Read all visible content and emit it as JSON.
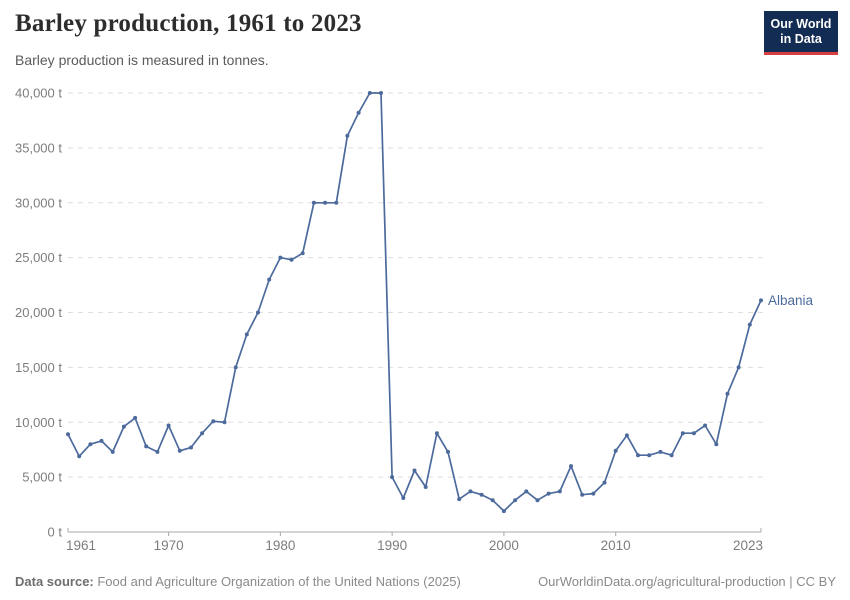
{
  "header": {
    "title": "Barley production, 1961 to 2023",
    "subtitle": "Barley production is measured in tonnes.",
    "logo": {
      "line1": "Our World",
      "line2": "in Data"
    }
  },
  "chart_data": {
    "type": "line",
    "title": "Barley production, 1961 to 2023",
    "ylabel": "tonnes",
    "xlim": [
      1961,
      2023
    ],
    "ylim": [
      0,
      40000
    ],
    "grid": "horizontal-dashed",
    "legend_position": "end-of-line-label",
    "xticks": [
      1961,
      1970,
      1980,
      1990,
      2000,
      2010,
      2023
    ],
    "yticks": [
      0,
      5000,
      10000,
      15000,
      20000,
      25000,
      30000,
      35000,
      40000
    ],
    "ytick_labels": [
      "0 t",
      "5,000 t",
      "10,000 t",
      "15,000 t",
      "20,000 t",
      "25,000 t",
      "30,000 t",
      "35,000 t",
      "40,000 t"
    ],
    "series": [
      {
        "name": "Albania",
        "color": "#4C6A9C",
        "x": [
          1961,
          1962,
          1963,
          1964,
          1965,
          1966,
          1967,
          1968,
          1969,
          1970,
          1971,
          1972,
          1973,
          1974,
          1975,
          1976,
          1977,
          1978,
          1979,
          1980,
          1981,
          1982,
          1983,
          1984,
          1985,
          1986,
          1987,
          1988,
          1989,
          1990,
          1991,
          1992,
          1993,
          1994,
          1995,
          1996,
          1997,
          1998,
          1999,
          2000,
          2001,
          2002,
          2003,
          2004,
          2005,
          2006,
          2007,
          2008,
          2009,
          2010,
          2011,
          2012,
          2013,
          2014,
          2015,
          2016,
          2017,
          2018,
          2019,
          2020,
          2021,
          2022,
          2023
        ],
        "values": [
          8900,
          6900,
          8000,
          8300,
          7300,
          9600,
          10400,
          7800,
          7300,
          9700,
          7400,
          7700,
          9000,
          10100,
          10000,
          15000,
          18000,
          20000,
          23000,
          25000,
          24800,
          25400,
          30000,
          30000,
          30000,
          36100,
          38200,
          40000,
          40000,
          5000,
          3100,
          5600,
          4100,
          9000,
          7300,
          3000,
          3700,
          3400,
          2900,
          1900,
          2900,
          3700,
          2900,
          3500,
          3700,
          6000,
          3400,
          3500,
          4500,
          7400,
          8800,
          7000,
          7000,
          7300,
          7000,
          9000,
          9000,
          9700,
          8000,
          12600,
          15000,
          18900,
          21100
        ]
      }
    ]
  },
  "footer": {
    "source_label": "Data source:",
    "source_text": " Food and Agriculture Organization of the United Nations (2025)",
    "credit": "OurWorldinData.org/agricultural-production | CC BY"
  },
  "colors": {
    "line": "#4C6A9C",
    "grid": "#dedede",
    "axis": "#a8a8a8",
    "tick_label": "#7d7d7d",
    "logo_bg": "#122C54",
    "logo_stripe": "#D63E42"
  }
}
